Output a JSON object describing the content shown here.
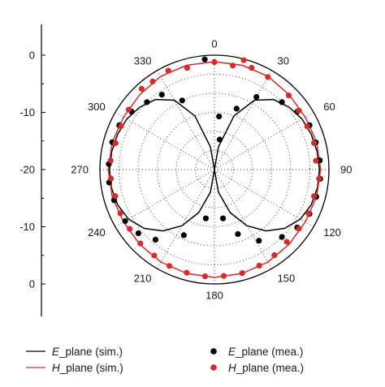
{
  "chart_data": {
    "type": "polar",
    "title": "",
    "radial_axis": {
      "range": [
        -30,
        0
      ],
      "tick_labels": [
        "0",
        "-10",
        "-20",
        "-10",
        "0"
      ]
    },
    "angular_axis": {
      "unit": "deg",
      "direction": "clockwise",
      "zero_at": "top",
      "tick_labels": [
        "0",
        "30",
        "60",
        "90",
        "120",
        "150",
        "180",
        "210",
        "240",
        "270",
        "300",
        "330"
      ]
    },
    "grid": true,
    "legend_position": "bottom",
    "series": [
      {
        "legend_parts": [
          "E",
          "_plane (sim.)"
        ],
        "style": "line",
        "color": "#000000",
        "points": [
          [
            0,
            -30
          ],
          [
            10,
            -24
          ],
          [
            20,
            -15
          ],
          [
            30,
            -9
          ],
          [
            40,
            -6
          ],
          [
            50,
            -4.5
          ],
          [
            60,
            -3.5
          ],
          [
            70,
            -3
          ],
          [
            80,
            -2.7
          ],
          [
            90,
            -2.5
          ],
          [
            100,
            -2.6
          ],
          [
            110,
            -3
          ],
          [
            120,
            -4
          ],
          [
            130,
            -6
          ],
          [
            140,
            -9
          ],
          [
            150,
            -13
          ],
          [
            160,
            -18
          ],
          [
            170,
            -24
          ],
          [
            180,
            -30
          ],
          [
            190,
            -24
          ],
          [
            200,
            -18
          ],
          [
            210,
            -13
          ],
          [
            220,
            -9
          ],
          [
            230,
            -6
          ],
          [
            240,
            -4
          ],
          [
            250,
            -3
          ],
          [
            260,
            -2.6
          ],
          [
            270,
            -2.5
          ],
          [
            280,
            -2.7
          ],
          [
            290,
            -3
          ],
          [
            300,
            -3.5
          ],
          [
            310,
            -4.5
          ],
          [
            320,
            -6
          ],
          [
            330,
            -9
          ],
          [
            340,
            -15
          ],
          [
            350,
            -24
          ],
          [
            360,
            -30
          ]
        ]
      },
      {
        "legend_parts": [
          "H",
          "_plane (sim.)"
        ],
        "style": "line",
        "color": "#d42b2b",
        "points": [
          [
            0,
            -1.7
          ],
          [
            15,
            -1.7
          ],
          [
            30,
            -1.8
          ],
          [
            45,
            -2.3
          ],
          [
            60,
            -2.5
          ],
          [
            75,
            -2.3
          ],
          [
            90,
            -2.2
          ],
          [
            105,
            -2.3
          ],
          [
            120,
            -2.5
          ],
          [
            135,
            -2.3
          ],
          [
            150,
            -2.0
          ],
          [
            165,
            -1.8
          ],
          [
            180,
            -1.7
          ],
          [
            195,
            -1.8
          ],
          [
            210,
            -2.0
          ],
          [
            225,
            -2.3
          ],
          [
            240,
            -2.5
          ],
          [
            255,
            -2.3
          ],
          [
            270,
            -2.2
          ],
          [
            285,
            -2.3
          ],
          [
            300,
            -2.5
          ],
          [
            315,
            -2.3
          ],
          [
            330,
            -1.8
          ],
          [
            345,
            -1.7
          ],
          [
            360,
            -1.7
          ]
        ]
      },
      {
        "legend_parts": [
          "E",
          "_plane (mea.)"
        ],
        "style": "marker",
        "color": "#000000",
        "points": [
          [
            -5,
            -1
          ],
          [
            5,
            -16
          ],
          [
            10,
            -22
          ],
          [
            20,
            -13
          ],
          [
            30,
            -8
          ],
          [
            45,
            -5
          ],
          [
            55,
            -3.5
          ],
          [
            65,
            -2.5
          ],
          [
            75,
            -2.5
          ],
          [
            85,
            -2.3
          ],
          [
            95,
            -2.2
          ],
          [
            105,
            -2.4
          ],
          [
            115,
            -2.5
          ],
          [
            125,
            -3.5
          ],
          [
            135,
            -5
          ],
          [
            148,
            -8
          ],
          [
            160,
            -12
          ],
          [
            170,
            -17
          ],
          [
            190,
            -17
          ],
          [
            205,
            -11
          ],
          [
            220,
            -6
          ],
          [
            230,
            -4
          ],
          [
            240,
            -3
          ],
          [
            253,
            -2.5
          ],
          [
            263,
            -2.2
          ],
          [
            273,
            -2.3
          ],
          [
            285,
            -2.3
          ],
          [
            295,
            -2.5
          ],
          [
            305,
            -3.5
          ],
          [
            315,
            -5
          ],
          [
            325,
            -6
          ],
          [
            335,
            -10
          ]
        ]
      },
      {
        "legend_parts": [
          "H",
          "_plane (mea.)"
        ],
        "style": "marker",
        "color": "#d42b2b",
        "points": [
          [
            0,
            -1.8
          ],
          [
            10,
            -2.3
          ],
          [
            15,
            -0.3
          ],
          [
            20,
            -1.6
          ],
          [
            30,
            -2
          ],
          [
            45,
            -2.5
          ],
          [
            55,
            -3
          ],
          [
            65,
            -3.2
          ],
          [
            75,
            -3
          ],
          [
            85,
            -3.3
          ],
          [
            95,
            -2.5
          ],
          [
            105,
            -3
          ],
          [
            115,
            -2.8
          ],
          [
            125,
            -3
          ],
          [
            135,
            -3.2
          ],
          [
            145,
            -2.6
          ],
          [
            155,
            -2.2
          ],
          [
            165,
            -1.9
          ],
          [
            175,
            -2.0
          ],
          [
            185,
            -1.9
          ],
          [
            195,
            -2.0
          ],
          [
            205,
            -2.1
          ],
          [
            215,
            -2.5
          ],
          [
            225,
            -2.6
          ],
          [
            235,
            -2.9
          ],
          [
            245,
            -2.8
          ],
          [
            255,
            -3.1
          ],
          [
            265,
            -2.8
          ],
          [
            275,
            -2.7
          ],
          [
            285,
            -3.2
          ],
          [
            295,
            -3.0
          ],
          [
            305,
            -2.6
          ],
          [
            318,
            -1.5
          ],
          [
            325,
            -1.8
          ],
          [
            335,
            -1.4
          ],
          [
            345,
            -2.4
          ]
        ]
      }
    ]
  }
}
